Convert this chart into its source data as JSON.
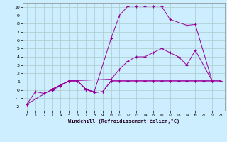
{
  "xlabel": "Windchill (Refroidissement éolien,°C)",
  "background_color": "#cceeff",
  "grid_color": "#aacccc",
  "line_color": "#990099",
  "xlim": [
    -0.5,
    23.5
  ],
  "ylim": [
    -2.5,
    10.5
  ],
  "xticks": [
    0,
    1,
    2,
    3,
    4,
    5,
    6,
    7,
    8,
    9,
    10,
    11,
    12,
    13,
    14,
    15,
    16,
    17,
    18,
    19,
    20,
    21,
    22,
    23
  ],
  "yticks": [
    -2,
    -1,
    0,
    1,
    2,
    3,
    4,
    5,
    6,
    7,
    8,
    9,
    10
  ],
  "series": [
    {
      "x": [
        0,
        1,
        2,
        3,
        4,
        5,
        6,
        7,
        8,
        9,
        10,
        11,
        12,
        13,
        14,
        15,
        16,
        17,
        18,
        19,
        20,
        21,
        22,
        23
      ],
      "y": [
        -1.7,
        -0.2,
        -0.4,
        0.0,
        0.5,
        1.1,
        1.1,
        0.1,
        -0.3,
        -0.2,
        1.1,
        1.1,
        1.1,
        1.1,
        1.1,
        1.1,
        1.1,
        1.1,
        1.1,
        1.1,
        1.1,
        1.1,
        1.1,
        1.1
      ]
    },
    {
      "x": [
        3,
        4,
        5,
        6,
        7,
        8,
        10,
        11,
        12,
        13,
        14,
        15,
        16,
        17,
        19,
        20,
        22
      ],
      "y": [
        0.1,
        0.6,
        1.1,
        1.1,
        0.1,
        -0.2,
        6.2,
        9.0,
        10.1,
        10.1,
        10.1,
        10.1,
        10.1,
        8.5,
        7.8,
        7.9,
        1.1
      ]
    },
    {
      "x": [
        3,
        4,
        5,
        10,
        11,
        12,
        13,
        14,
        15,
        16,
        17,
        18,
        19,
        20,
        22
      ],
      "y": [
        0.1,
        0.6,
        1.1,
        1.3,
        2.5,
        3.5,
        4.0,
        4.0,
        4.5,
        5.0,
        4.5,
        4.0,
        3.0,
        4.8,
        1.1
      ]
    },
    {
      "x": [
        0,
        3,
        4,
        5,
        6,
        7,
        8,
        9,
        10,
        11,
        12,
        13,
        14,
        15,
        16,
        17,
        18,
        19,
        20,
        21,
        22,
        23
      ],
      "y": [
        -1.7,
        0.1,
        0.6,
        1.1,
        1.1,
        0.1,
        -0.3,
        -0.2,
        1.1,
        1.1,
        1.1,
        1.1,
        1.1,
        1.1,
        1.1,
        1.1,
        1.1,
        1.1,
        1.1,
        1.1,
        1.1,
        1.1
      ]
    }
  ]
}
